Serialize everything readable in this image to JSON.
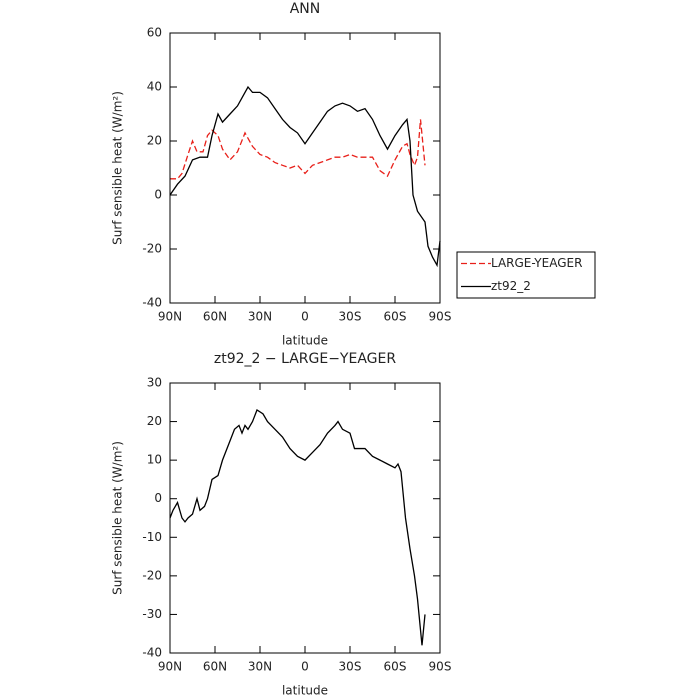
{
  "chart_data": [
    {
      "type": "line",
      "title": "ANN",
      "x_label": "latitude",
      "y_label": "Surf sensible heat (W/m²)",
      "xlim": [
        90,
        -90
      ],
      "ylim": [
        -40,
        60
      ],
      "xticks": [
        {
          "value": 90,
          "label": "90N"
        },
        {
          "value": 60,
          "label": "60N"
        },
        {
          "value": 30,
          "label": "30N"
        },
        0,
        {
          "value": -30,
          "label": "30S"
        },
        {
          "value": -60,
          "label": "60S"
        },
        {
          "value": -90,
          "label": "90S"
        }
      ],
      "yticks": [
        -40,
        -20,
        0,
        20,
        40,
        60
      ],
      "series": [
        {
          "name": "LARGE-YEAGER",
          "color": "#e8201a",
          "linestyle": "dashed",
          "x": [
            90,
            85,
            82,
            78,
            75,
            72,
            68,
            65,
            62,
            58,
            55,
            50,
            45,
            40,
            35,
            30,
            25,
            20,
            15,
            10,
            5,
            0,
            -5,
            -10,
            -15,
            -20,
            -25,
            -30,
            -35,
            -40,
            -45,
            -50,
            -55,
            -60,
            -65,
            -68,
            -70,
            -73,
            -75,
            -77,
            -80
          ],
          "values": [
            6,
            6,
            8,
            15,
            20,
            16,
            16,
            22,
            24,
            22,
            17,
            13,
            16,
            23,
            18,
            15,
            14,
            12,
            11,
            10,
            11,
            8,
            11,
            12,
            13,
            14,
            14,
            15,
            14,
            14,
            14,
            9,
            7,
            13,
            18,
            19,
            15,
            11,
            14,
            28,
            11
          ]
        },
        {
          "name": "zt92_2",
          "color": "#000000",
          "linestyle": "solid",
          "x": [
            90,
            85,
            80,
            75,
            70,
            65,
            62,
            58,
            55,
            50,
            45,
            42,
            38,
            35,
            30,
            25,
            20,
            15,
            10,
            5,
            0,
            -5,
            -10,
            -15,
            -20,
            -25,
            -30,
            -35,
            -40,
            -45,
            -50,
            -55,
            -60,
            -65,
            -68,
            -70,
            -72,
            -75,
            -80,
            -82,
            -85,
            -88,
            -90
          ],
          "values": [
            0,
            4,
            7,
            13,
            14,
            14,
            22,
            30,
            27,
            30,
            33,
            36,
            40,
            38,
            38,
            36,
            32,
            28,
            25,
            23,
            19,
            23,
            27,
            31,
            33,
            34,
            33,
            31,
            32,
            28,
            22,
            17,
            22,
            26,
            28,
            20,
            0,
            -6,
            -10,
            -19,
            -23,
            -26,
            -17
          ]
        }
      ]
    },
    {
      "type": "line",
      "title": "zt92_2 − LARGE−YEAGER",
      "x_label": "latitude",
      "y_label": "Surf sensible heat (W/m²)",
      "xlim": [
        90,
        -90
      ],
      "ylim": [
        -40,
        30
      ],
      "xticks": [
        {
          "value": 90,
          "label": "90N"
        },
        {
          "value": 60,
          "label": "60N"
        },
        {
          "value": 30,
          "label": "30N"
        },
        0,
        {
          "value": -30,
          "label": "30S"
        },
        {
          "value": -60,
          "label": "60S"
        },
        {
          "value": -90,
          "label": "90S"
        }
      ],
      "yticks": [
        -40,
        -30,
        -20,
        -10,
        0,
        10,
        20,
        30
      ],
      "series": [
        {
          "color": "#000000",
          "linestyle": "solid",
          "x": [
            90,
            88,
            85,
            82,
            80,
            78,
            75,
            72,
            70,
            67,
            65,
            62,
            58,
            55,
            50,
            47,
            44,
            42,
            40,
            38,
            35,
            32,
            28,
            25,
            20,
            15,
            10,
            5,
            0,
            -5,
            -10,
            -15,
            -20,
            -22,
            -25,
            -30,
            -33,
            -40,
            -45,
            -50,
            -55,
            -60,
            -62,
            -64,
            -67,
            -70,
            -73,
            -75,
            -78,
            -80
          ],
          "values": [
            -5,
            -3,
            -1,
            -5,
            -6,
            -5,
            -4,
            0,
            -3,
            -2,
            0,
            5,
            6,
            10,
            15,
            18,
            19,
            17,
            19,
            18,
            20,
            23,
            22,
            20,
            18,
            16,
            13,
            11,
            10,
            12,
            14,
            17,
            19,
            20,
            18,
            17,
            13,
            13,
            11,
            10,
            9,
            8,
            9,
            7,
            -5,
            -13,
            -20,
            -26,
            -38,
            -30
          ]
        }
      ]
    }
  ]
}
